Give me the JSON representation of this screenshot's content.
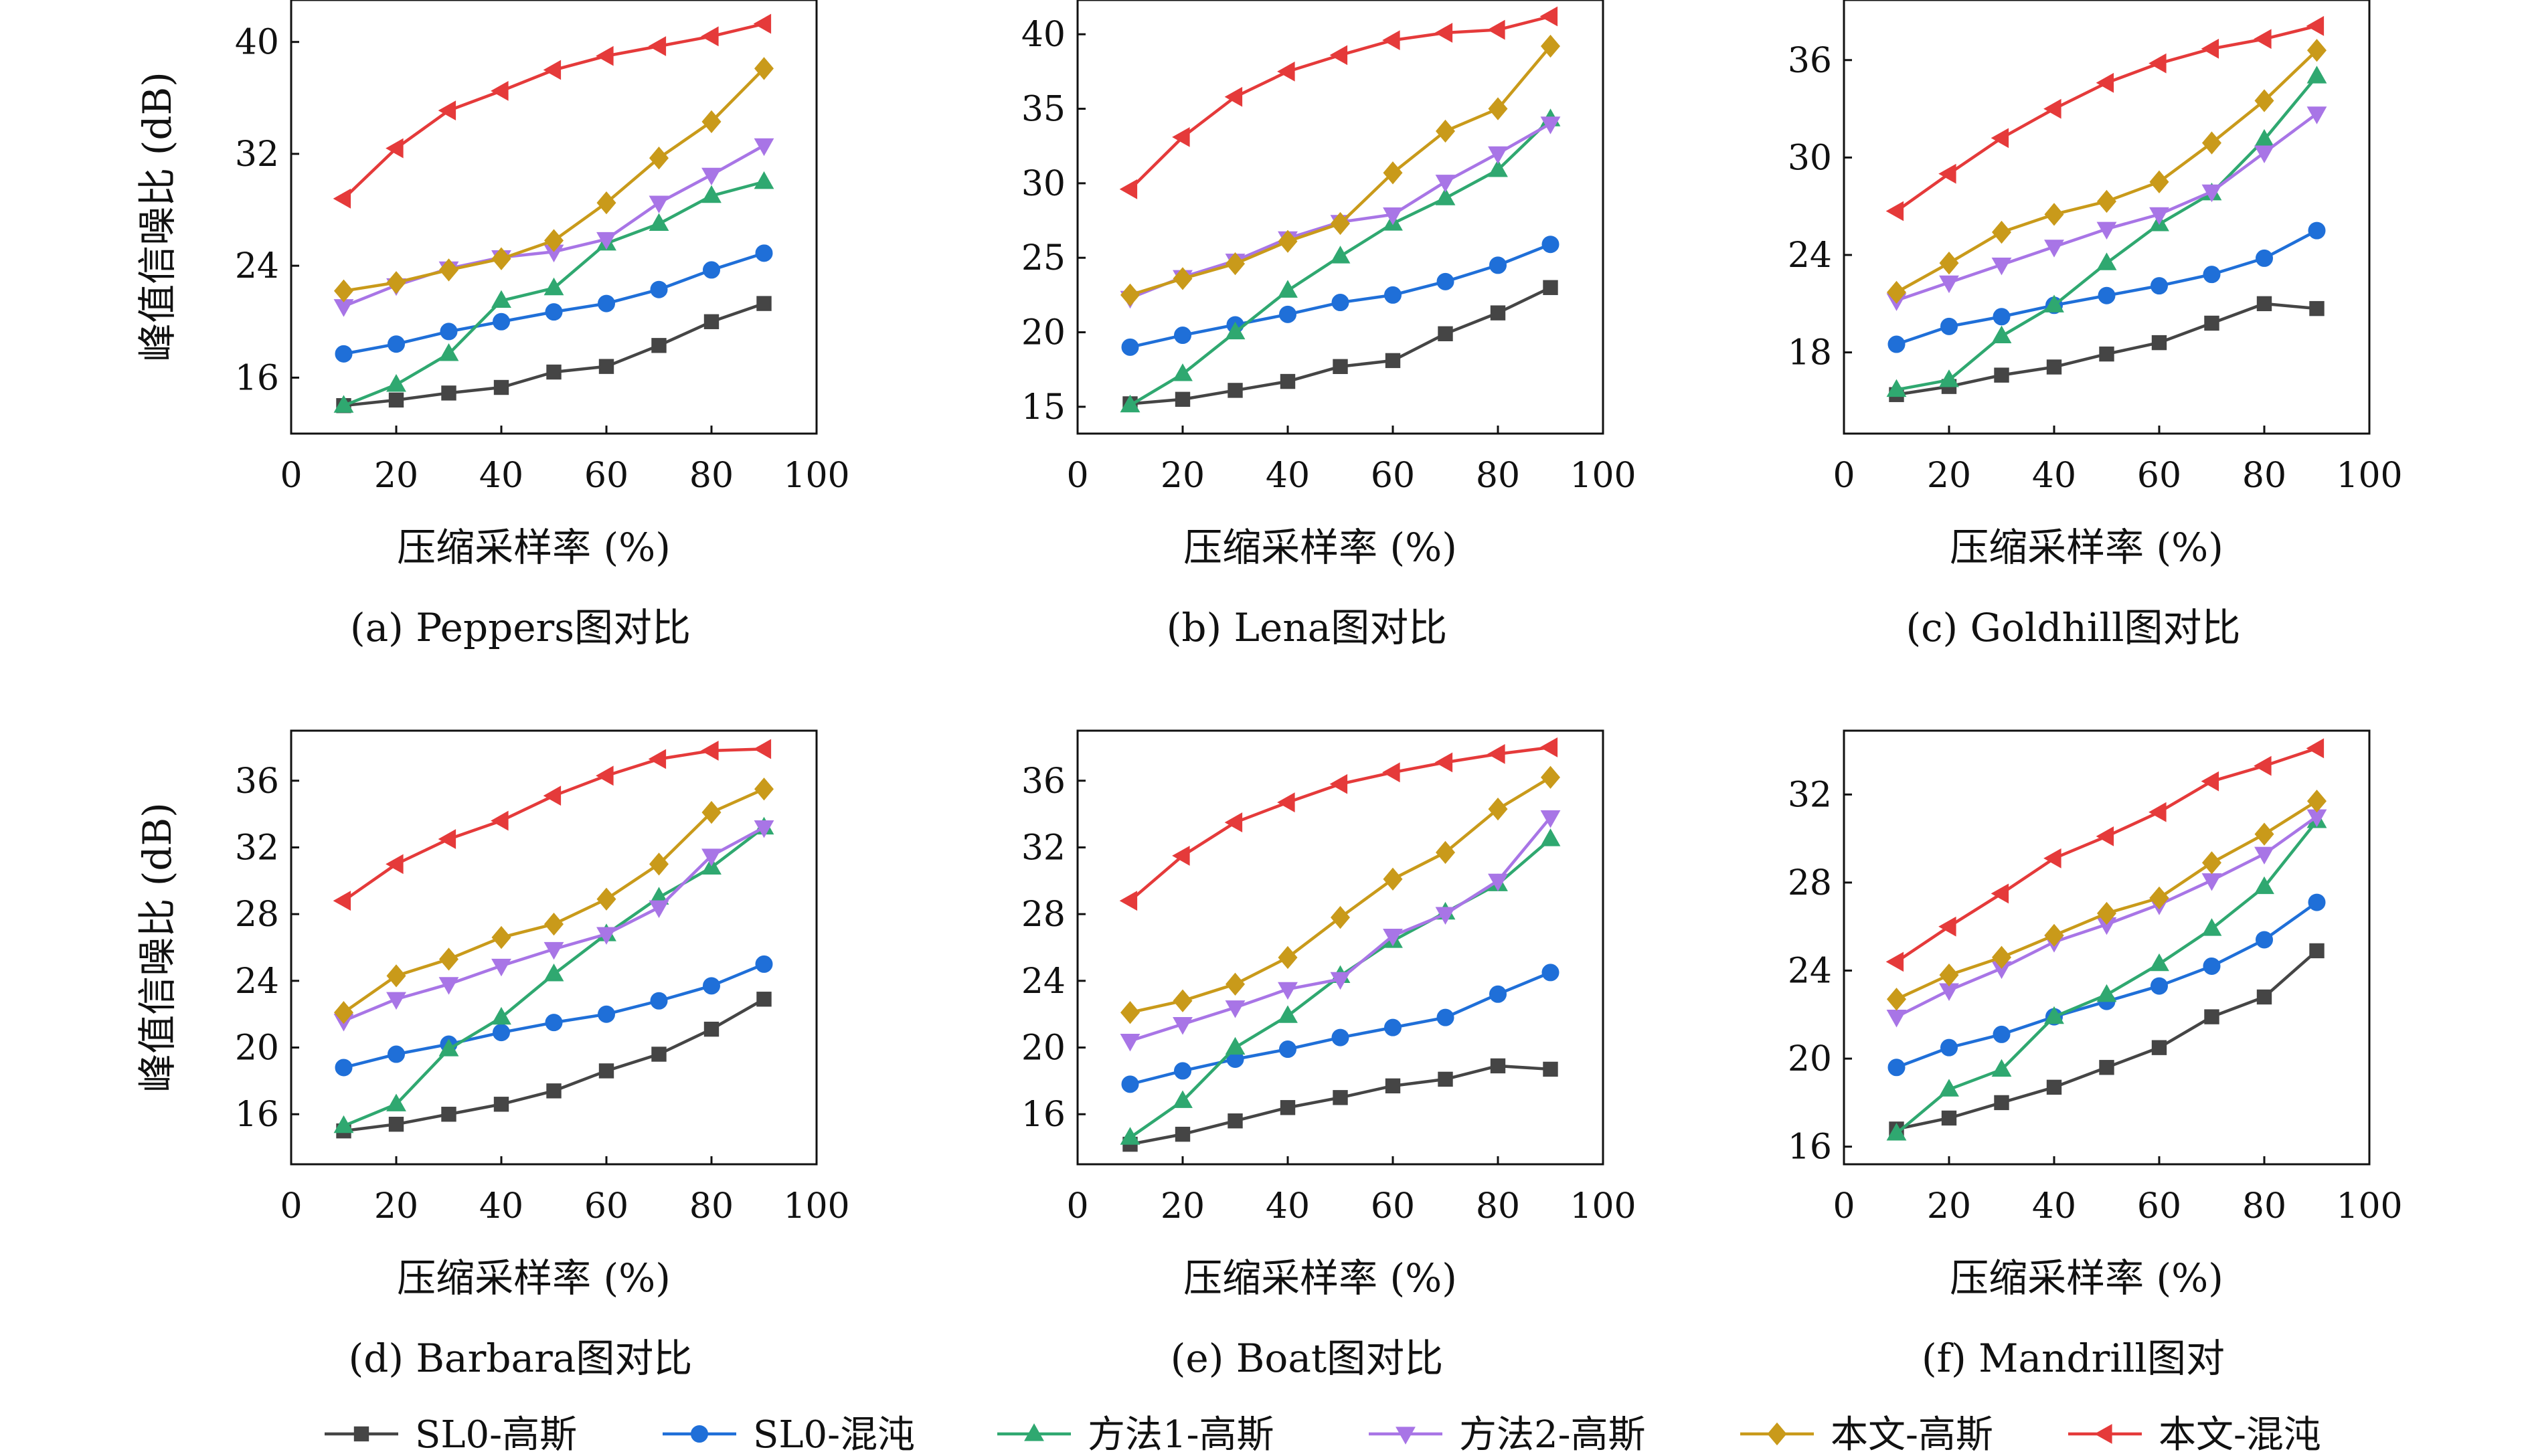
{
  "colors": {
    "sl0_gauss": "#454545",
    "sl0_chaos": "#1f6fd8",
    "m1_gauss": "#2fa870",
    "m2_gauss": "#a875e6",
    "ours_gauss": "#c99a1a",
    "ours_chaos": "#e53a3a"
  },
  "legend": [
    {
      "key": "sl0_gauss",
      "label": "SL0-高斯",
      "marker": "square"
    },
    {
      "key": "sl0_chaos",
      "label": "SL0-混沌",
      "marker": "circle"
    },
    {
      "key": "m1_gauss",
      "label": "方法1-高斯",
      "marker": "triangle-up"
    },
    {
      "key": "m2_gauss",
      "label": "方法2-高斯",
      "marker": "triangle-down"
    },
    {
      "key": "ours_gauss",
      "label": "本文-高斯",
      "marker": "diamond"
    },
    {
      "key": "ours_chaos",
      "label": "本文-混沌",
      "marker": "triangle-left"
    }
  ],
  "chart_data": [
    {
      "type": "line",
      "caption": "(a) Peppers图对比",
      "xlabel": "压缩采样率 (%)",
      "ylabel": "峰值信噪比 (dB)",
      "xlim": [
        0,
        100
      ],
      "ylim": [
        12,
        43
      ],
      "xticks": [
        0,
        20,
        40,
        60,
        80,
        100
      ],
      "yticks": [
        16,
        24,
        32,
        40
      ],
      "x": [
        10,
        20,
        30,
        40,
        50,
        60,
        70,
        80,
        90
      ],
      "series": [
        {
          "key": "sl0_gauss",
          "values": [
            14.0,
            14.4,
            14.9,
            15.3,
            16.4,
            16.8,
            18.3,
            20.0,
            21.3
          ]
        },
        {
          "key": "sl0_chaos",
          "values": [
            17.7,
            18.4,
            19.3,
            20.0,
            20.7,
            21.3,
            22.3,
            23.7,
            24.9
          ]
        },
        {
          "key": "m1_gauss",
          "values": [
            14.0,
            15.5,
            17.7,
            21.5,
            22.4,
            25.6,
            27.0,
            29.0,
            30.0
          ]
        },
        {
          "key": "m2_gauss",
          "values": [
            21.1,
            22.6,
            23.8,
            24.6,
            25.0,
            25.9,
            28.5,
            30.5,
            32.6
          ]
        },
        {
          "key": "ours_gauss",
          "values": [
            22.2,
            22.8,
            23.7,
            24.5,
            25.8,
            28.5,
            31.7,
            34.3,
            38.1
          ]
        },
        {
          "key": "ours_chaos",
          "values": [
            28.8,
            32.4,
            35.1,
            36.5,
            38.0,
            39.0,
            39.7,
            40.4,
            41.3
          ]
        }
      ]
    },
    {
      "type": "line",
      "caption": "(b) Lena图对比",
      "xlabel": "压缩采样率 (%)",
      "ylabel": "",
      "xlim": [
        0,
        100
      ],
      "ylim": [
        13.2,
        42.3
      ],
      "xticks": [
        0,
        20,
        40,
        60,
        80,
        100
      ],
      "yticks": [
        15,
        20,
        25,
        30,
        35,
        40
      ],
      "x": [
        10,
        20,
        30,
        40,
        50,
        60,
        70,
        80,
        90
      ],
      "series": [
        {
          "key": "sl0_gauss",
          "values": [
            15.2,
            15.5,
            16.1,
            16.7,
            17.7,
            18.1,
            19.9,
            21.3,
            23.0
          ]
        },
        {
          "key": "sl0_chaos",
          "values": [
            19.0,
            19.8,
            20.5,
            21.2,
            22.0,
            22.5,
            23.4,
            24.5,
            25.9
          ]
        },
        {
          "key": "m1_gauss",
          "values": [
            15.1,
            17.2,
            20.0,
            22.8,
            25.1,
            27.3,
            29.0,
            30.9,
            34.3
          ]
        },
        {
          "key": "m2_gauss",
          "values": [
            22.3,
            23.7,
            24.8,
            26.3,
            27.4,
            27.9,
            30.1,
            32.0,
            34.0
          ]
        },
        {
          "key": "ours_gauss",
          "values": [
            22.5,
            23.6,
            24.6,
            26.1,
            27.3,
            30.7,
            33.5,
            35.0,
            39.2
          ]
        },
        {
          "key": "ours_chaos",
          "values": [
            29.6,
            33.1,
            35.8,
            37.5,
            38.6,
            39.6,
            40.1,
            40.3,
            41.2
          ]
        }
      ]
    },
    {
      "type": "line",
      "caption": "(c) Goldhill图对比",
      "xlabel": "压缩采样率 (%)",
      "ylabel": "",
      "xlim": [
        0,
        100
      ],
      "ylim": [
        13,
        39.7
      ],
      "xticks": [
        0,
        20,
        40,
        60,
        80,
        100
      ],
      "yticks": [
        18,
        24,
        30,
        36
      ],
      "x": [
        10,
        20,
        30,
        40,
        50,
        60,
        70,
        80,
        90
      ],
      "series": [
        {
          "key": "sl0_gauss",
          "values": [
            15.4,
            15.9,
            16.6,
            17.1,
            17.9,
            18.6,
            19.8,
            21.0,
            20.7
          ]
        },
        {
          "key": "sl0_chaos",
          "values": [
            18.5,
            19.6,
            20.2,
            20.9,
            21.5,
            22.1,
            22.8,
            23.8,
            25.5
          ]
        },
        {
          "key": "m1_gauss",
          "values": [
            15.7,
            16.3,
            19.0,
            20.9,
            23.5,
            25.9,
            27.8,
            31.1,
            35.0
          ]
        },
        {
          "key": "m2_gauss",
          "values": [
            21.2,
            22.3,
            23.4,
            24.5,
            25.6,
            26.5,
            27.9,
            30.3,
            32.7
          ]
        },
        {
          "key": "ours_gauss",
          "values": [
            21.7,
            23.5,
            25.4,
            26.5,
            27.3,
            28.5,
            30.9,
            33.5,
            36.6
          ]
        },
        {
          "key": "ours_chaos",
          "values": [
            26.7,
            29.0,
            31.2,
            33.0,
            34.6,
            35.8,
            36.7,
            37.3,
            38.1
          ]
        }
      ]
    },
    {
      "type": "line",
      "caption": "(d) Barbara图对比",
      "xlabel": "压缩采样率 (%)",
      "ylabel": "峰值信噪比 (dB)",
      "xlim": [
        0,
        100
      ],
      "ylim": [
        13,
        39
      ],
      "xticks": [
        0,
        20,
        40,
        60,
        80,
        100
      ],
      "yticks": [
        16,
        20,
        24,
        28,
        32,
        36
      ],
      "x": [
        10,
        20,
        30,
        40,
        50,
        60,
        70,
        80,
        90
      ],
      "series": [
        {
          "key": "sl0_gauss",
          "values": [
            15.0,
            15.4,
            16.0,
            16.6,
            17.4,
            18.6,
            19.6,
            21.1,
            22.9
          ]
        },
        {
          "key": "sl0_chaos",
          "values": [
            18.8,
            19.6,
            20.2,
            20.9,
            21.5,
            22.0,
            22.8,
            23.7,
            25.0
          ]
        },
        {
          "key": "m1_gauss",
          "values": [
            15.3,
            16.6,
            19.9,
            21.8,
            24.4,
            26.8,
            29.0,
            30.8,
            33.2
          ]
        },
        {
          "key": "m2_gauss",
          "values": [
            21.6,
            22.9,
            23.8,
            24.9,
            25.9,
            26.8,
            28.4,
            31.5,
            33.2
          ]
        },
        {
          "key": "ours_gauss",
          "values": [
            22.1,
            24.3,
            25.3,
            26.6,
            27.4,
            28.9,
            31.0,
            34.1,
            35.5
          ]
        },
        {
          "key": "ours_chaos",
          "values": [
            28.8,
            31.0,
            32.5,
            33.6,
            35.1,
            36.3,
            37.3,
            37.8,
            37.9
          ]
        }
      ]
    },
    {
      "type": "line",
      "caption": "(e) Boat图对比",
      "xlabel": "压缩采样率 (%)",
      "ylabel": "",
      "xlim": [
        0,
        100
      ],
      "ylim": [
        13,
        39
      ],
      "xticks": [
        0,
        20,
        40,
        60,
        80,
        100
      ],
      "yticks": [
        16,
        20,
        24,
        28,
        32,
        36
      ],
      "x": [
        10,
        20,
        30,
        40,
        50,
        60,
        70,
        80,
        90
      ],
      "series": [
        {
          "key": "sl0_gauss",
          "values": [
            14.2,
            14.8,
            15.6,
            16.4,
            17.0,
            17.7,
            18.1,
            18.9,
            18.7
          ]
        },
        {
          "key": "sl0_chaos",
          "values": [
            17.8,
            18.6,
            19.3,
            19.9,
            20.6,
            21.2,
            21.8,
            23.2,
            24.5
          ]
        },
        {
          "key": "m1_gauss",
          "values": [
            14.6,
            16.8,
            20.0,
            21.9,
            24.3,
            26.4,
            28.1,
            29.8,
            32.5
          ]
        },
        {
          "key": "m2_gauss",
          "values": [
            20.4,
            21.4,
            22.4,
            23.5,
            24.1,
            26.7,
            28.0,
            30.0,
            33.8
          ]
        },
        {
          "key": "ours_gauss",
          "values": [
            22.1,
            22.8,
            23.8,
            25.4,
            27.8,
            30.1,
            31.7,
            34.3,
            36.2
          ]
        },
        {
          "key": "ours_chaos",
          "values": [
            28.8,
            31.5,
            33.5,
            34.7,
            35.8,
            36.5,
            37.1,
            37.6,
            38.0
          ]
        }
      ]
    },
    {
      "type": "line",
      "caption": "(f) Mandrill图对",
      "xlabel": "压缩采样率 (%)",
      "ylabel": "",
      "xlim": [
        0,
        100
      ],
      "ylim": [
        15.2,
        34.9
      ],
      "xticks": [
        0,
        20,
        40,
        60,
        80,
        100
      ],
      "yticks": [
        16,
        20,
        24,
        28,
        32
      ],
      "x": [
        10,
        20,
        30,
        40,
        50,
        60,
        70,
        80,
        90
      ],
      "series": [
        {
          "key": "sl0_gauss",
          "values": [
            16.8,
            17.3,
            18.0,
            18.7,
            19.6,
            20.5,
            21.9,
            22.8,
            24.9
          ]
        },
        {
          "key": "sl0_chaos",
          "values": [
            19.6,
            20.5,
            21.1,
            21.9,
            22.6,
            23.3,
            24.2,
            25.4,
            27.1
          ]
        },
        {
          "key": "m1_gauss",
          "values": [
            16.6,
            18.6,
            19.5,
            21.9,
            22.9,
            24.3,
            25.9,
            27.8,
            30.8
          ]
        },
        {
          "key": "m2_gauss",
          "values": [
            21.9,
            23.1,
            24.1,
            25.3,
            26.1,
            27.0,
            28.1,
            29.3,
            31.0
          ]
        },
        {
          "key": "ours_gauss",
          "values": [
            22.7,
            23.8,
            24.6,
            25.6,
            26.6,
            27.3,
            28.9,
            30.2,
            31.7
          ]
        },
        {
          "key": "ours_chaos",
          "values": [
            24.4,
            26.0,
            27.5,
            29.1,
            30.1,
            31.2,
            32.6,
            33.3,
            34.1
          ]
        }
      ]
    }
  ]
}
